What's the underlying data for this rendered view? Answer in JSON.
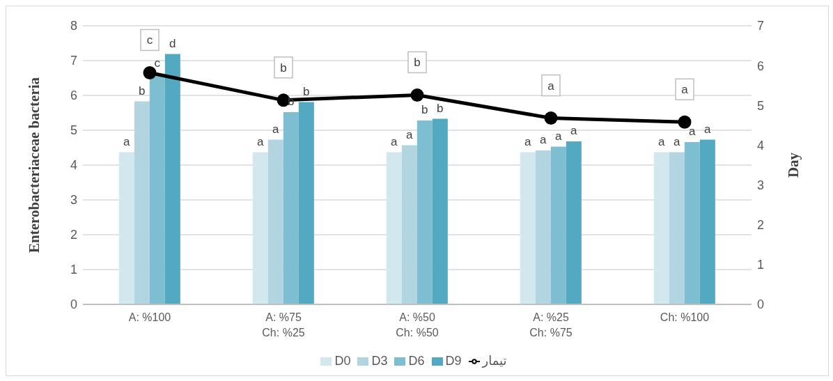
{
  "chart_data": {
    "type": "bar",
    "ylabel": "Enterobacteriaceae bacteria",
    "y2label": "Day",
    "categories": [
      "A: %100",
      "A: %75\nCh: %25",
      "A: %50\nCh: %50",
      "A: %25\nCh: %75",
      "Ch: %100"
    ],
    "series": [
      {
        "name": "D0",
        "color": "#d3e7ee",
        "values": [
          4.37,
          4.37,
          4.37,
          4.37,
          4.37
        ],
        "value_labels": [
          "a",
          "a",
          "a",
          "a",
          "a"
        ]
      },
      {
        "name": "D3",
        "color": "#b2d5e1",
        "values": [
          5.83,
          4.73,
          4.57,
          4.42,
          4.37
        ],
        "value_labels": [
          "b",
          "a",
          "a",
          "a",
          "a"
        ]
      },
      {
        "name": "D6",
        "color": "#7dbfd1",
        "values": [
          6.62,
          5.52,
          5.28,
          4.53,
          4.66
        ],
        "value_labels": [
          "c",
          "b",
          "b",
          "a",
          "a"
        ]
      },
      {
        "name": "D9",
        "color": "#52a9c1",
        "values": [
          7.19,
          5.81,
          5.33,
          4.68,
          4.73
        ],
        "value_labels": [
          "d",
          "b",
          "b",
          "a",
          "a"
        ]
      },
      {
        "name": "تیمار",
        "type": "line",
        "axis": "y2",
        "color": "#000000",
        "marker": "circle",
        "values": [
          5.82,
          5.13,
          5.26,
          4.68,
          4.58
        ],
        "value_labels": [
          "c",
          "b",
          "b",
          "a",
          "a"
        ]
      }
    ],
    "ylim": [
      0,
      8
    ],
    "yticks": [
      0,
      1,
      2,
      3,
      4,
      5,
      6,
      7,
      8
    ],
    "y2lim": [
      0,
      7
    ],
    "y2ticks": [
      0,
      1,
      2,
      3,
      4,
      5,
      6,
      7
    ],
    "grid": "y",
    "legend": "bottom"
  }
}
